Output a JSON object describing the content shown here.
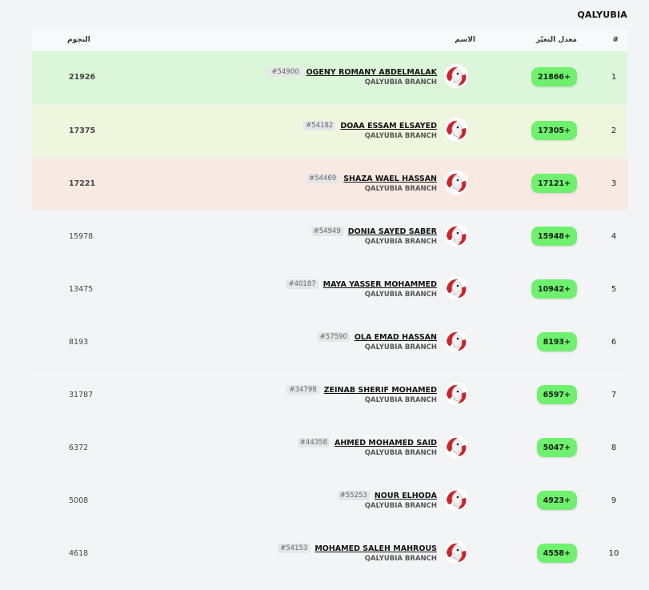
{
  "page_title": "QALYUBIA",
  "header": {
    "rank": "#",
    "rate": "معدل التغيّر",
    "name": "الاسم",
    "stars": "النجوم"
  },
  "colors": {
    "pill": "#6ff06e",
    "row1": "#dcf6d9",
    "row2": "#eef7dd",
    "row3": "#f8e9e3"
  },
  "rows": [
    {
      "rank": "1",
      "rate": "21866+",
      "id": "#54900",
      "name": "OGENY ROMANY ABDELMALAK",
      "branch": "QALYUBIA BRANCH",
      "stars": "21926"
    },
    {
      "rank": "2",
      "rate": "17305+",
      "id": "#54182",
      "name": "DOAA ESSAM ELSAYED",
      "branch": "QALYUBIA BRANCH",
      "stars": "17375"
    },
    {
      "rank": "3",
      "rate": "17121+",
      "id": "#54469",
      "name": "SHAZA WAEL HASSAN",
      "branch": "QALYUBIA BRANCH",
      "stars": "17221"
    },
    {
      "rank": "4",
      "rate": "15948+",
      "id": "#54949",
      "name": "DONIA SAYED SABER",
      "branch": "QALYUBIA BRANCH",
      "stars": "15978"
    },
    {
      "rank": "5",
      "rate": "10942+",
      "id": "#40187",
      "name": "MAYA YASSER MOHAMMED",
      "branch": "QALYUBIA BRANCH",
      "stars": "13475"
    },
    {
      "rank": "6",
      "rate": "8193+",
      "id": "#57590",
      "name": "OLA EMAD HASSAN",
      "branch": "QALYUBIA BRANCH",
      "stars": "8193"
    },
    {
      "rank": "7",
      "rate": "6597+",
      "id": "#34798",
      "name": "ZEINAB SHERIF MOHAMED",
      "branch": "QALYUBIA BRANCH",
      "stars": "31787"
    },
    {
      "rank": "8",
      "rate": "5047+",
      "id": "#44358",
      "name": "AHMED MOHAMED SAID",
      "branch": "QALYUBIA BRANCH",
      "stars": "6372"
    },
    {
      "rank": "9",
      "rate": "4923+",
      "id": "#55253",
      "name": "NOUR ELHODA",
      "branch": "QALYUBIA BRANCH",
      "stars": "5008"
    },
    {
      "rank": "10",
      "rate": "4558+",
      "id": "#54153",
      "name": "MOHAMED SALEH MAHROUS",
      "branch": "QALYUBIA BRANCH",
      "stars": "4618"
    }
  ]
}
